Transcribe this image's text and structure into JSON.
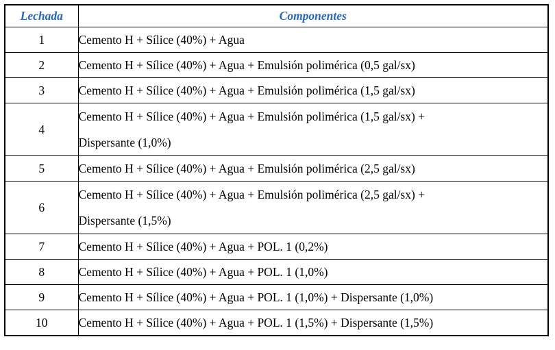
{
  "colors": {
    "header_text": "#2667C2",
    "body_text": "#000000",
    "border": "#000000",
    "background": "#ffffff"
  },
  "table": {
    "headers": {
      "lechada": "Lechada",
      "componentes": "Componentes"
    },
    "rows": [
      {
        "lechada": "1",
        "componentes": "Cemento H + Sílice (40%) + Agua"
      },
      {
        "lechada": "2",
        "componentes": "Cemento H + Sílice (40%) + Agua + Emulsión polimérica (0,5 gal/sx)"
      },
      {
        "lechada": "3",
        "componentes": "Cemento H + Sílice (40%) + Agua + Emulsión polimérica (1,5 gal/sx)"
      },
      {
        "lechada": "4",
        "componentes_line1": "Cemento H + Sílice (40%) + Agua + Emulsión polimérica (1,5 gal/sx) +",
        "componentes_line2": "Dispersante (1,0%)"
      },
      {
        "lechada": "5",
        "componentes": "Cemento H + Sílice (40%) + Agua + Emulsión polimérica (2,5 gal/sx)"
      },
      {
        "lechada": "6",
        "componentes_line1": "Cemento H + Sílice (40%) + Agua + Emulsión polimérica (2,5 gal/sx) +",
        "componentes_line2": "Dispersante (1,5%)"
      },
      {
        "lechada": "7",
        "componentes": "Cemento H + Sílice (40%) + Agua + POL. 1 (0,2%)"
      },
      {
        "lechada": "8",
        "componentes": "Cemento H + Sílice (40%) + Agua + POL. 1 (1,0%)"
      },
      {
        "lechada": "9",
        "componentes": "Cemento H + Sílice (40%) + Agua + POL. 1 (1,0%) + Dispersante (1,0%)"
      },
      {
        "lechada": "10",
        "componentes": "Cemento H + Sílice (40%) + Agua + POL. 1 (1,5%) + Dispersante (1,5%)"
      }
    ]
  }
}
